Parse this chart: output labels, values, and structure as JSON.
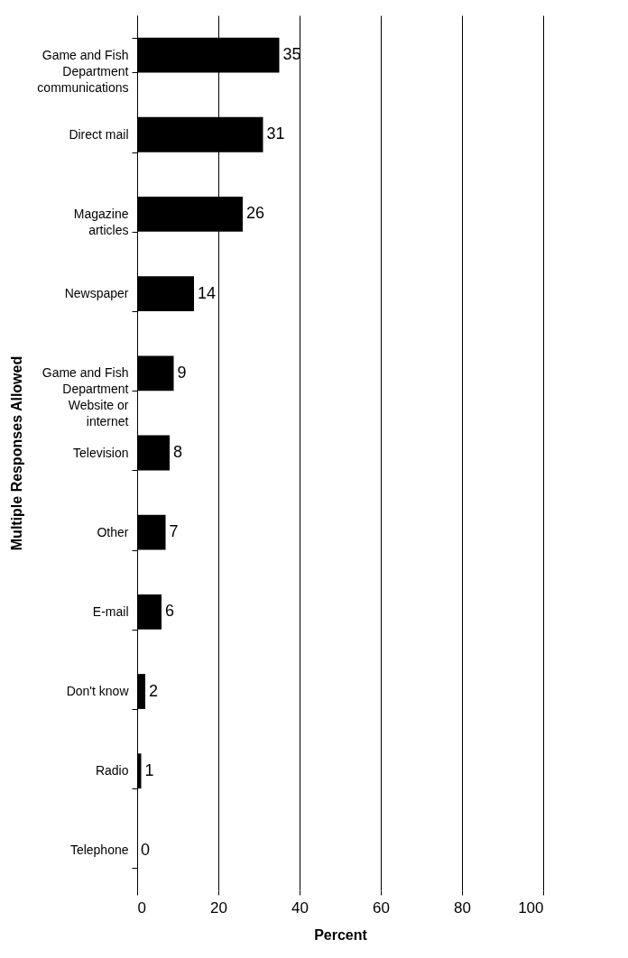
{
  "chart_data": {
    "type": "bar",
    "orientation": "horizontal",
    "ylabel": "Multiple Responses Allowed",
    "xlabel": "Percent",
    "categories": [
      "Game and Fish Department communications",
      "Direct mail",
      "Magazine articles",
      "Newspaper",
      "Game and Fish Department Website or internet",
      "Television",
      "Other",
      "E-mail",
      "Don't know",
      "Radio",
      "Telephone"
    ],
    "values": [
      35,
      31,
      26,
      14,
      9,
      8,
      7,
      6,
      2,
      1,
      0
    ],
    "color": "#000000",
    "xlim": [
      0,
      100
    ],
    "xticks": [
      0,
      20,
      40,
      60,
      80,
      100
    ],
    "grid": "x",
    "data_labels": true
  }
}
